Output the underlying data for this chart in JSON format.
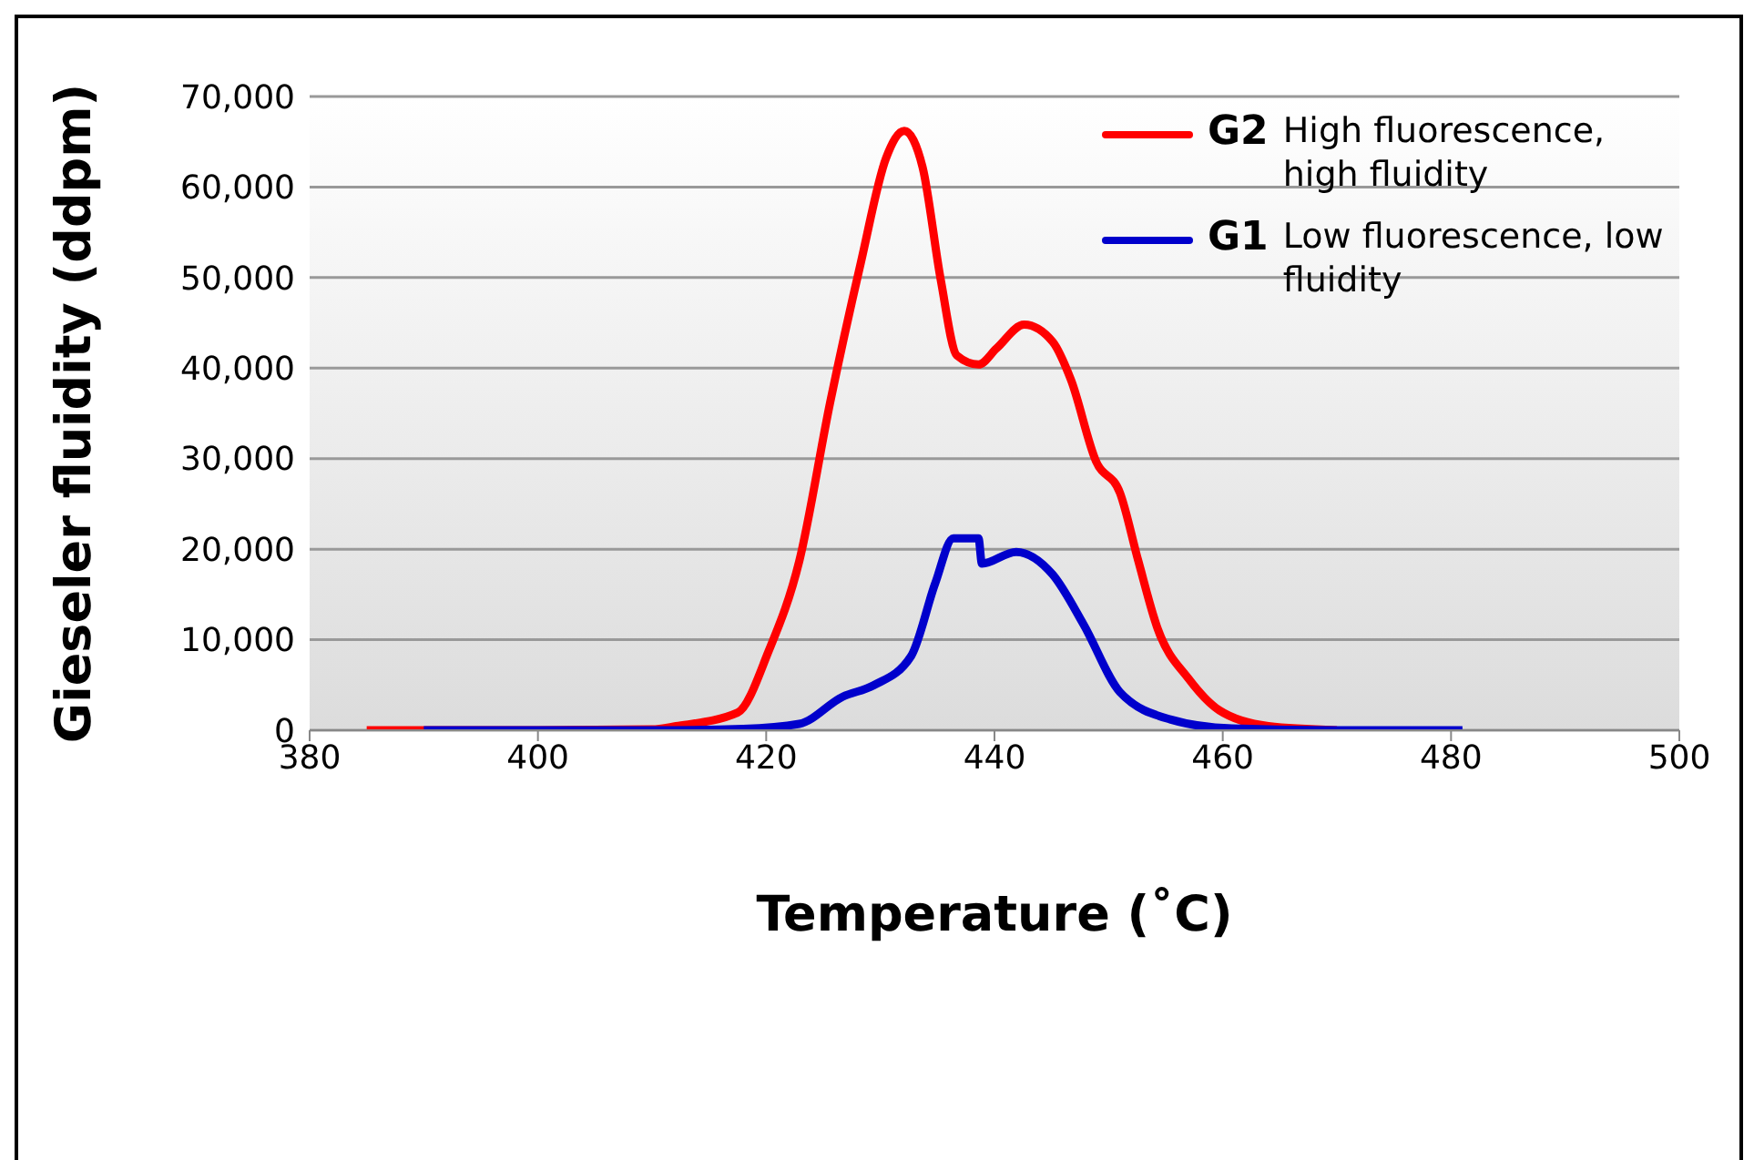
{
  "chart_data": {
    "type": "line",
    "xlabel": "Temperature (˚C)",
    "ylabel": "Gieseler fluidity (ddpm)",
    "xlim": [
      380,
      500
    ],
    "xticks": [
      380,
      400,
      420,
      440,
      460,
      480,
      500
    ],
    "ylim": [
      0,
      70000
    ],
    "yticks": [
      {
        "value": 0,
        "label": "0"
      },
      {
        "value": 10000,
        "label": "10,000"
      },
      {
        "value": 20000,
        "label": "20,000"
      },
      {
        "value": 30000,
        "label": "30,000"
      },
      {
        "value": 40000,
        "label": "40,000"
      },
      {
        "value": 50000,
        "label": "50,000"
      },
      {
        "value": 60000,
        "label": "60,000"
      },
      {
        "value": 70000,
        "label": "70,000"
      }
    ],
    "grid": "y",
    "legend": "top right",
    "line_style": "solid",
    "marker": "none",
    "annotations": [
      "High fluorescence, high fluidity",
      "Low fluorescence, low fluidity"
    ],
    "series": [
      {
        "name": "G2",
        "color": "#ff0000",
        "x": [
          385,
          390,
          400,
          410,
          412.1,
          417.5,
          420.2,
          422.9,
          425.6,
          428.3,
          430.5,
          432.1,
          433.7,
          435.3,
          436.7,
          438.6,
          440.2,
          442.6,
          445.1,
          446.7,
          448.9,
          451.0,
          452.6,
          454.3,
          457.0,
          459.7,
          464,
          470
        ],
        "values": [
          0,
          0,
          0,
          100,
          450,
          1950,
          8700,
          18700,
          36200,
          51700,
          63200,
          66200,
          62200,
          49700,
          41400,
          40400,
          42200,
          44800,
          42900,
          38700,
          29700,
          26200,
          18700,
          11200,
          5700,
          2200,
          450,
          0
        ]
      },
      {
        "name": "G1",
        "color": "#0000cc",
        "x": [
          390,
          400,
          410,
          418,
          422.9,
          426.7,
          429.4,
          432.7,
          434.8,
          436.4,
          438.6,
          438.9,
          441.9,
          445.1,
          447.8,
          451.0,
          455.4,
          460.8,
          470,
          481
        ],
        "values": [
          0,
          0,
          0,
          150,
          700,
          3700,
          4950,
          8200,
          16200,
          21200,
          21200,
          18400,
          19700,
          17200,
          11700,
          4200,
          1200,
          200,
          0,
          0
        ]
      }
    ]
  }
}
